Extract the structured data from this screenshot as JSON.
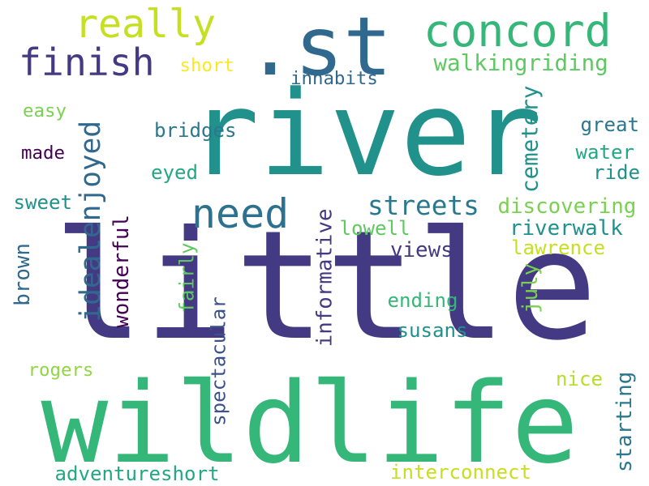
{
  "colors": {
    "background": "#ffffff",
    "palette": [
      "#440154",
      "#443983",
      "#31688e",
      "#21918c",
      "#35b779",
      "#90d743",
      "#fde725"
    ]
  },
  "words": [
    {
      "id": "river",
      "text": "river",
      "color": "#21918c",
      "vertical": false
    },
    {
      "id": "little",
      "text": "little",
      "color": "#443983",
      "vertical": false
    },
    {
      "id": "wildlife",
      "text": "wildlife",
      "color": "#35b779",
      "vertical": false
    },
    {
      "id": "st",
      "text": ".st",
      "color": "#31688e",
      "vertical": false
    },
    {
      "id": "concord",
      "text": "concord",
      "color": "#35b779",
      "vertical": false
    },
    {
      "id": "finish",
      "text": "finish",
      "color": "#443983",
      "vertical": false
    },
    {
      "id": "really",
      "text": "really",
      "color": "#c5e021",
      "vertical": false
    },
    {
      "id": "need",
      "text": "need",
      "color": "#2c728e",
      "vertical": false
    },
    {
      "id": "walkingriding",
      "text": "walkingriding",
      "color": "#5ec962",
      "vertical": false
    },
    {
      "id": "short-top",
      "text": "short",
      "color": "#fde725",
      "vertical": false
    },
    {
      "id": "inhabits",
      "text": "inhabits",
      "color": "#31688e",
      "vertical": false
    },
    {
      "id": "easy",
      "text": "easy",
      "color": "#7ad151",
      "vertical": false
    },
    {
      "id": "made",
      "text": "made",
      "color": "#440154",
      "vertical": false
    },
    {
      "id": "idealenjoyed",
      "text": "idealenjoyed",
      "color": "#31688e",
      "vertical": true
    },
    {
      "id": "bridges",
      "text": "bridges",
      "color": "#2a788e",
      "vertical": false
    },
    {
      "id": "eyed",
      "text": "eyed",
      "color": "#22a884",
      "vertical": false
    },
    {
      "id": "great",
      "text": "great",
      "color": "#2a788e",
      "vertical": false
    },
    {
      "id": "water",
      "text": "water",
      "color": "#22a884",
      "vertical": false
    },
    {
      "id": "ride",
      "text": "ride",
      "color": "#21918c",
      "vertical": false
    },
    {
      "id": "cemetery",
      "text": "cemetery",
      "color": "#21918c",
      "vertical": true
    },
    {
      "id": "streets",
      "text": "streets",
      "color": "#2a788e",
      "vertical": false
    },
    {
      "id": "discovering",
      "text": "discovering",
      "color": "#7ad151",
      "vertical": false
    },
    {
      "id": "sweet",
      "text": "sweet",
      "color": "#21918c",
      "vertical": false
    },
    {
      "id": "riverwalk",
      "text": "riverwalk",
      "color": "#21918c",
      "vertical": false
    },
    {
      "id": "lowell",
      "text": "lowell",
      "color": "#5ec962",
      "vertical": false
    },
    {
      "id": "lawrence",
      "text": "lawrence",
      "color": "#c5e021",
      "vertical": false
    },
    {
      "id": "wonderful",
      "text": "wonderful",
      "color": "#440154",
      "vertical": true
    },
    {
      "id": "views",
      "text": "views",
      "color": "#443983",
      "vertical": false
    },
    {
      "id": "informative",
      "text": "informative",
      "color": "#443983",
      "vertical": true
    },
    {
      "id": "fairly",
      "text": "fairly",
      "color": "#5ec962",
      "vertical": true
    },
    {
      "id": "brown",
      "text": "brown",
      "color": "#31688e",
      "vertical": true
    },
    {
      "id": "july",
      "text": "july",
      "color": "#7ad151",
      "vertical": true
    },
    {
      "id": "ending",
      "text": "ending",
      "color": "#35b779",
      "vertical": false
    },
    {
      "id": "susans",
      "text": "susans",
      "color": "#21918c",
      "vertical": false
    },
    {
      "id": "spectacular",
      "text": "spectacular",
      "color": "#3b528b",
      "vertical": true
    },
    {
      "id": "rogers",
      "text": "rogers",
      "color": "#90d743",
      "vertical": false
    },
    {
      "id": "nice",
      "text": "nice",
      "color": "#b5de2b",
      "vertical": false
    },
    {
      "id": "starting",
      "text": "starting",
      "color": "#2a788e",
      "vertical": true
    },
    {
      "id": "adventureshort",
      "text": "adventureshort",
      "color": "#22a884",
      "vertical": false
    },
    {
      "id": "interconnect",
      "text": "interconnect",
      "color": "#c5e021",
      "vertical": false
    }
  ]
}
